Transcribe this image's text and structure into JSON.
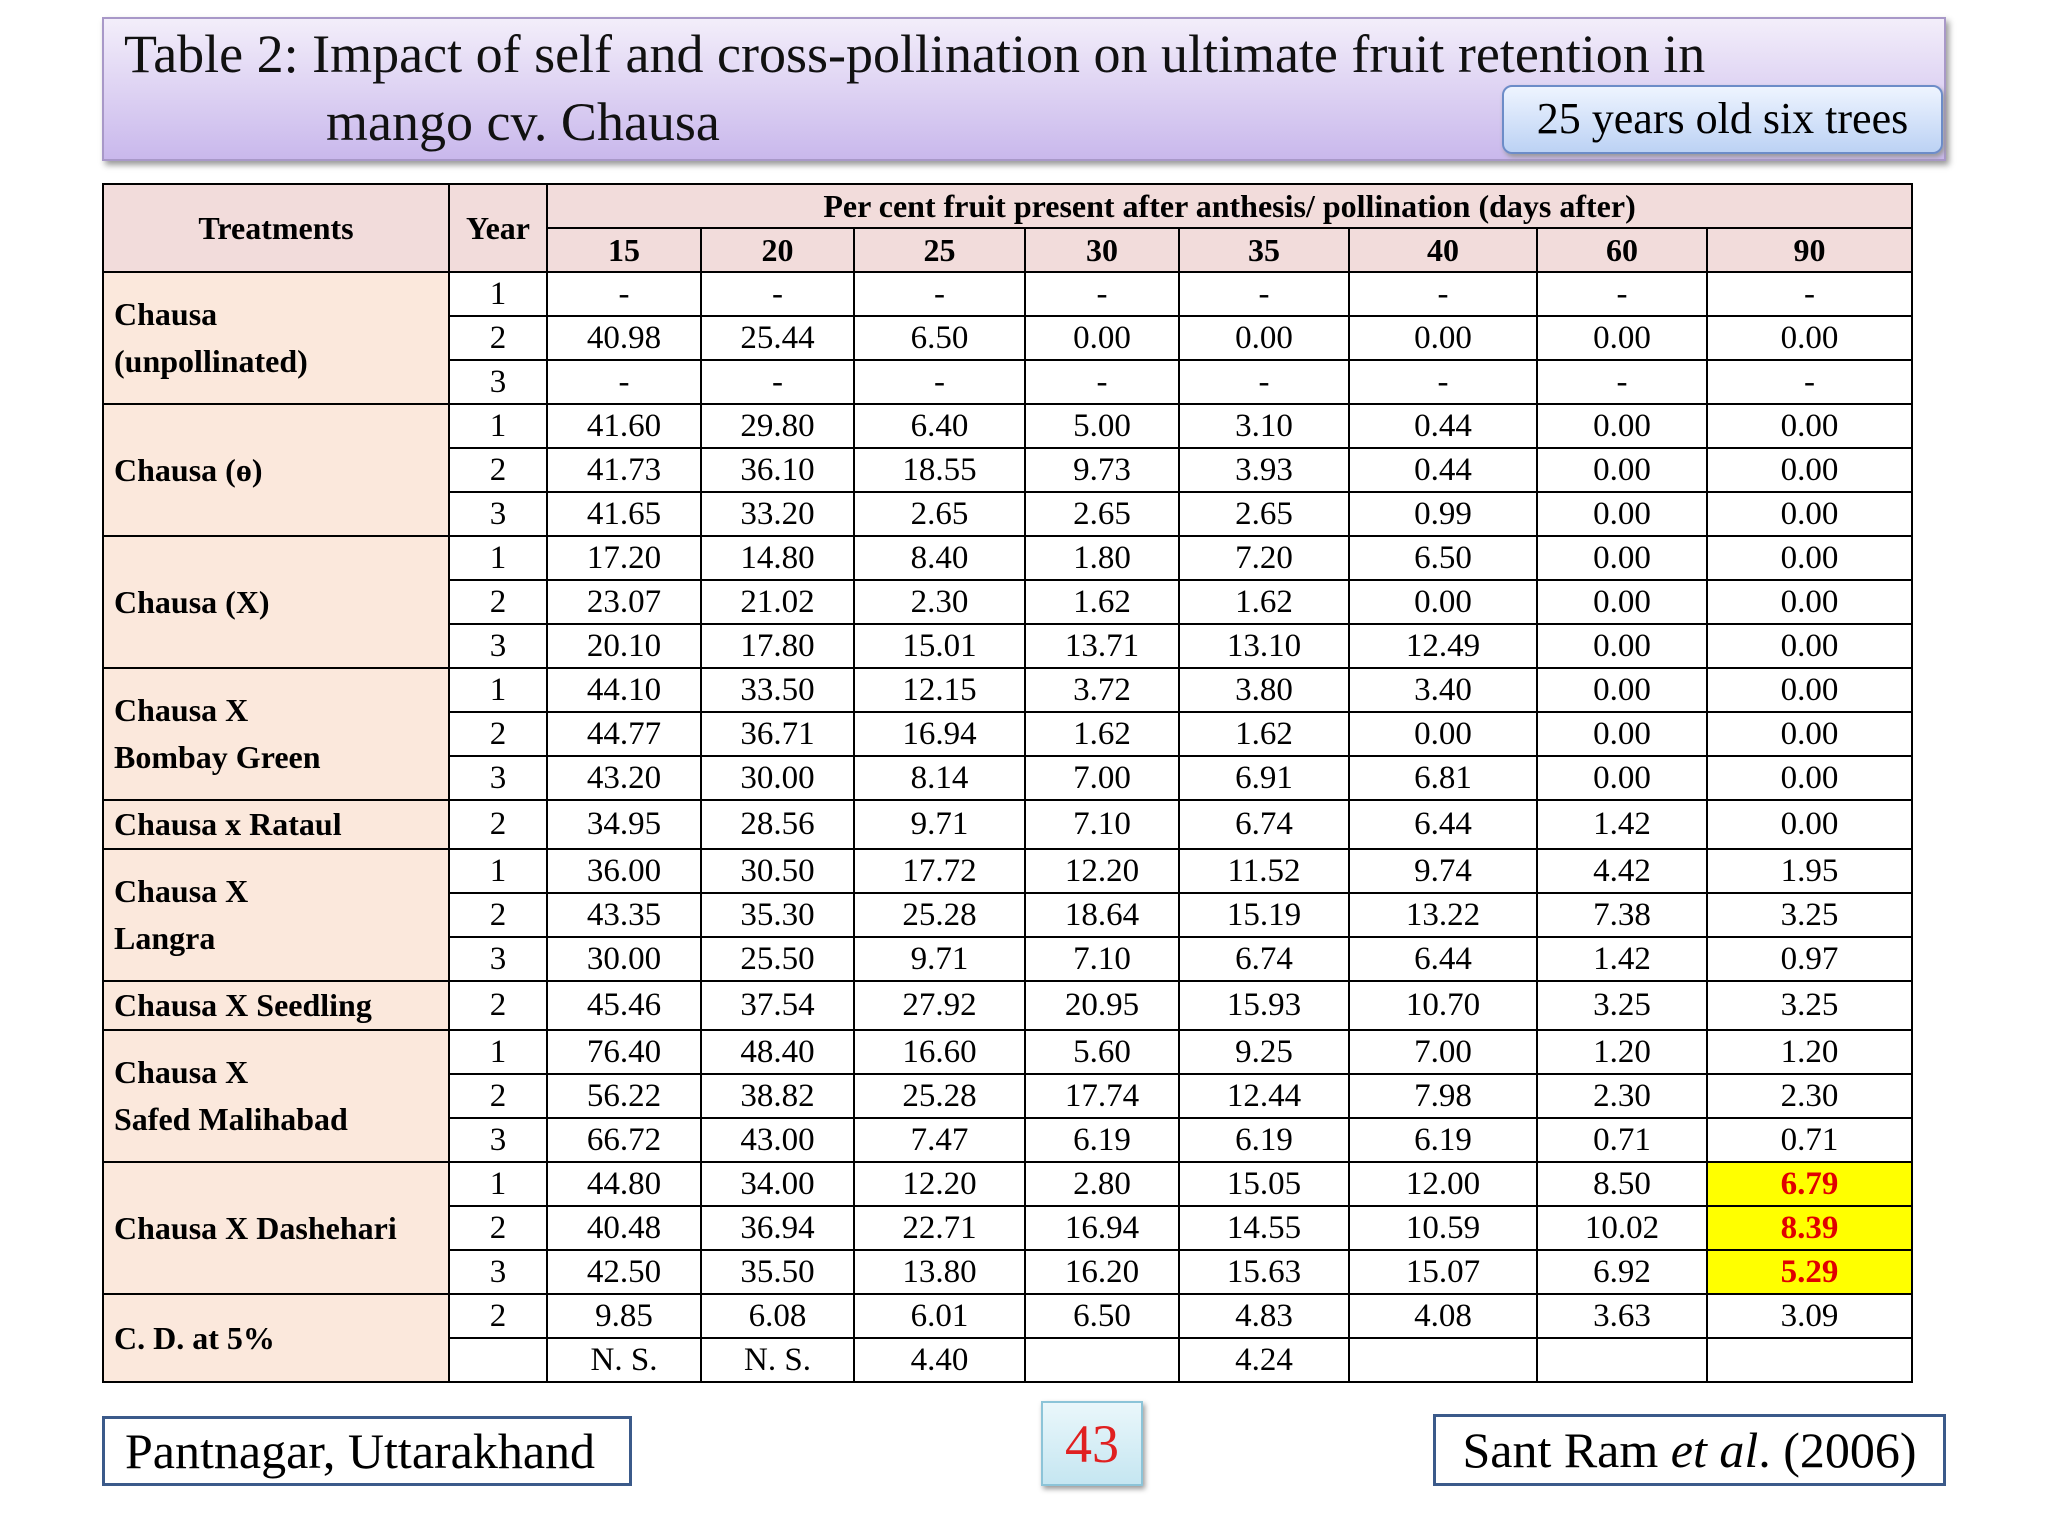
{
  "title": [
    "Table 2: Impact of self and cross-pollination on ultimate fruit retention in",
    "mango cv. Chausa"
  ],
  "badge": "25 years old six trees",
  "table": {
    "header": {
      "treatments": "Treatments",
      "year": "Year",
      "group": "Per cent fruit present after anthesis/ pollination (days after)",
      "days": [
        "15",
        "20",
        "25",
        "30",
        "35",
        "40",
        "60",
        "90"
      ]
    },
    "groups": [
      {
        "treatment": [
          "Chausa",
          "(unpollinated)"
        ],
        "rows": [
          {
            "year": "1",
            "values": [
              "-",
              "-",
              "-",
              "-",
              "-",
              "-",
              "-",
              "-"
            ]
          },
          {
            "year": "2",
            "values": [
              "40.98",
              "25.44",
              "6.50",
              "0.00",
              "0.00",
              "0.00",
              "0.00",
              "0.00"
            ]
          },
          {
            "year": "3",
            "values": [
              "-",
              "-",
              "-",
              "-",
              "-",
              "-",
              "-",
              "-"
            ]
          }
        ]
      },
      {
        "treatment": [
          "Chausa (ө)"
        ],
        "rows": [
          {
            "year": "1",
            "values": [
              "41.60",
              "29.80",
              "6.40",
              "5.00",
              "3.10",
              "0.44",
              "0.00",
              "0.00"
            ]
          },
          {
            "year": "2",
            "values": [
              "41.73",
              "36.10",
              "18.55",
              "9.73",
              "3.93",
              "0.44",
              "0.00",
              "0.00"
            ]
          },
          {
            "year": "3",
            "values": [
              "41.65",
              "33.20",
              "2.65",
              "2.65",
              "2.65",
              "0.99",
              "0.00",
              "0.00"
            ]
          }
        ]
      },
      {
        "treatment": [
          "Chausa (X)"
        ],
        "rows": [
          {
            "year": "1",
            "values": [
              "17.20",
              "14.80",
              "8.40",
              "1.80",
              "7.20",
              "6.50",
              "0.00",
              "0.00"
            ]
          },
          {
            "year": "2",
            "values": [
              "23.07",
              "21.02",
              "2.30",
              "1.62",
              "1.62",
              "0.00",
              "0.00",
              "0.00"
            ]
          },
          {
            "year": "3",
            "values": [
              "20.10",
              "17.80",
              "15.01",
              "13.71",
              "13.10",
              "12.49",
              "0.00",
              "0.00"
            ]
          }
        ]
      },
      {
        "treatment": [
          "Chausa X",
          "Bombay Green"
        ],
        "rows": [
          {
            "year": "1",
            "values": [
              "44.10",
              "33.50",
              "12.15",
              "3.72",
              "3.80",
              "3.40",
              "0.00",
              "0.00"
            ]
          },
          {
            "year": "2",
            "values": [
              "44.77",
              "36.71",
              "16.94",
              "1.62",
              "1.62",
              "0.00",
              "0.00",
              "0.00"
            ]
          },
          {
            "year": "3",
            "values": [
              "43.20",
              "30.00",
              "8.14",
              "7.00",
              "6.91",
              "6.81",
              "0.00",
              "0.00"
            ]
          }
        ]
      },
      {
        "treatment": [
          "Chausa x Rataul"
        ],
        "rows": [
          {
            "year": "2",
            "values": [
              "34.95",
              "28.56",
              "9.71",
              "7.10",
              "6.74",
              "6.44",
              "1.42",
              "0.00"
            ]
          }
        ]
      },
      {
        "treatment": [
          "Chausa X",
          "Langra"
        ],
        "rows": [
          {
            "year": "1",
            "values": [
              "36.00",
              "30.50",
              "17.72",
              "12.20",
              "11.52",
              "9.74",
              "4.42",
              "1.95"
            ]
          },
          {
            "year": "2",
            "values": [
              "43.35",
              "35.30",
              "25.28",
              "18.64",
              "15.19",
              "13.22",
              "7.38",
              "3.25"
            ]
          },
          {
            "year": "3",
            "values": [
              "30.00",
              "25.50",
              "9.71",
              "7.10",
              "6.74",
              "6.44",
              "1.42",
              "0.97"
            ]
          }
        ]
      },
      {
        "treatment": [
          "Chausa X Seedling"
        ],
        "rows": [
          {
            "year": "2",
            "values": [
              "45.46",
              "37.54",
              "27.92",
              "20.95",
              "15.93",
              "10.70",
              "3.25",
              "3.25"
            ]
          }
        ]
      },
      {
        "treatment": [
          "Chausa X",
          "Safed Malihabad"
        ],
        "rows": [
          {
            "year": "1",
            "values": [
              "76.40",
              "48.40",
              "16.60",
              "5.60",
              "9.25",
              "7.00",
              "1.20",
              "1.20"
            ]
          },
          {
            "year": "2",
            "values": [
              "56.22",
              "38.82",
              "25.28",
              "17.74",
              "12.44",
              "7.98",
              "2.30",
              "2.30"
            ]
          },
          {
            "year": "3",
            "values": [
              "66.72",
              "43.00",
              "7.47",
              "6.19",
              "6.19",
              "6.19",
              "0.71",
              "0.71"
            ]
          }
        ]
      },
      {
        "treatment": [
          "Chausa X Dashehari"
        ],
        "rows": [
          {
            "year": "1",
            "values": [
              "44.80",
              "34.00",
              "12.20",
              "2.80",
              "15.05",
              "12.00",
              "8.50",
              "6.79"
            ],
            "highlight": true
          },
          {
            "year": "2",
            "values": [
              "40.48",
              "36.94",
              "22.71",
              "16.94",
              "14.55",
              "10.59",
              "10.02",
              "8.39"
            ],
            "highlight": true
          },
          {
            "year": "3",
            "values": [
              "42.50",
              "35.50",
              "13.80",
              "16.20",
              "15.63",
              "15.07",
              "6.92",
              "5.29"
            ],
            "highlight": true
          }
        ]
      },
      {
        "treatment": [
          "C. D. at 5%"
        ],
        "rows": [
          {
            "year": "2",
            "values": [
              "9.85",
              "6.08",
              "6.01",
              "6.50",
              "4.83",
              "4.08",
              "3.63",
              "3.09"
            ]
          },
          {
            "year": null,
            "values": [
              "N. S.",
              "N. S.",
              "4.40",
              null,
              "4.24",
              null,
              null,
              null
            ]
          }
        ]
      }
    ]
  },
  "footer_left": "Pantnagar, Uttarakhand",
  "page_number": "43",
  "citation": [
    "Sant Ram ",
    "et al",
    ". (2006)"
  ]
}
